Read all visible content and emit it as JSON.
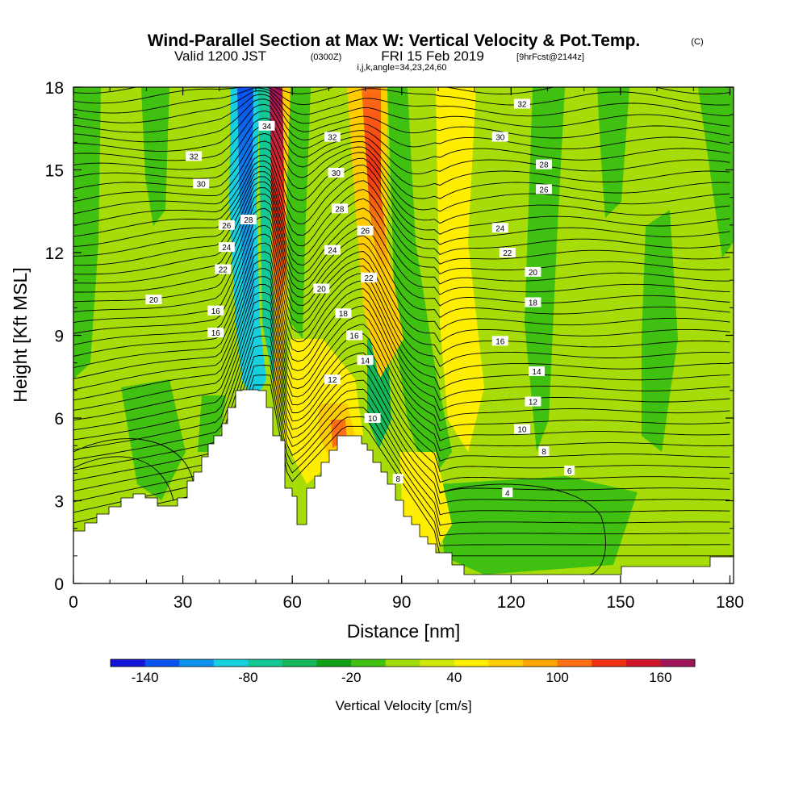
{
  "title": {
    "main": "Wind-Parallel Section at Max W: Vertical Velocity & Pot.Temp.",
    "main_units": "(C)",
    "valid_a": "Valid 1200 JST",
    "valid_utc": "(0300Z)",
    "valid_b": "FRI 15 Feb 2019",
    "forecast": "[9hrFcst@2144z]",
    "params": "i,j,k,angle=34,23,24,60"
  },
  "chart_data": {
    "type": "heatmap",
    "field": "Vertical Velocity",
    "overlay": "Potential Temperature contours (C)",
    "xlabel": "Distance [nm]",
    "ylabel": "Height [Kft MSL]",
    "xlim": [
      0,
      181
    ],
    "ylim": [
      0,
      18
    ],
    "x_ticks": [
      0,
      30,
      60,
      90,
      120,
      150,
      180
    ],
    "y_ticks": [
      0,
      3,
      6,
      9,
      12,
      15,
      18
    ],
    "colorbar": {
      "title": "Vertical Velocity [cm/s]",
      "levels": [
        -160,
        -140,
        -120,
        -100,
        -80,
        -60,
        -40,
        -20,
        0,
        20,
        40,
        60,
        80,
        100,
        120,
        140,
        160,
        180
      ],
      "labels": [
        -140,
        -80,
        -20,
        40,
        100,
        160
      ],
      "colors": [
        "#1414d8",
        "#0a52ee",
        "#0a92ee",
        "#16d0e0",
        "#14c896",
        "#14b858",
        "#10a018",
        "#40c010",
        "#a0dc08",
        "#d0e808",
        "#ffee00",
        "#ffcc00",
        "#ffa600",
        "#ff7014",
        "#f03214",
        "#d21428",
        "#a01458"
      ]
    },
    "theta_contour_labels": [
      {
        "x": 22,
        "y": 10.3,
        "v": "20"
      },
      {
        "x": 33,
        "y": 15.5,
        "v": "32"
      },
      {
        "x": 35,
        "y": 14.5,
        "v": "30"
      },
      {
        "x": 42,
        "y": 13.0,
        "v": "26"
      },
      {
        "x": 42,
        "y": 12.2,
        "v": "24"
      },
      {
        "x": 41,
        "y": 11.4,
        "v": "22"
      },
      {
        "x": 39,
        "y": 9.9,
        "v": "16"
      },
      {
        "x": 39,
        "y": 9.1,
        "v": "16"
      },
      {
        "x": 48,
        "y": 13.2,
        "v": "28"
      },
      {
        "x": 53,
        "y": 16.6,
        "v": "34"
      },
      {
        "x": 71,
        "y": 16.2,
        "v": "32"
      },
      {
        "x": 72,
        "y": 14.9,
        "v": "30"
      },
      {
        "x": 73,
        "y": 13.6,
        "v": "28"
      },
      {
        "x": 71,
        "y": 12.1,
        "v": "24"
      },
      {
        "x": 68,
        "y": 10.7,
        "v": "20"
      },
      {
        "x": 74,
        "y": 9.8,
        "v": "18"
      },
      {
        "x": 77,
        "y": 9.0,
        "v": "16"
      },
      {
        "x": 80,
        "y": 8.1,
        "v": "14"
      },
      {
        "x": 71,
        "y": 7.4,
        "v": "12"
      },
      {
        "x": 82,
        "y": 6.0,
        "v": "10"
      },
      {
        "x": 80,
        "y": 12.8,
        "v": "26"
      },
      {
        "x": 81,
        "y": 11.1,
        "v": "22"
      },
      {
        "x": 89,
        "y": 3.8,
        "v": "8"
      },
      {
        "x": 123,
        "y": 17.4,
        "v": "32"
      },
      {
        "x": 117,
        "y": 16.2,
        "v": "30"
      },
      {
        "x": 129,
        "y": 15.2,
        "v": "28"
      },
      {
        "x": 129,
        "y": 14.3,
        "v": "26"
      },
      {
        "x": 117,
        "y": 12.9,
        "v": "24"
      },
      {
        "x": 119,
        "y": 12.0,
        "v": "22"
      },
      {
        "x": 126,
        "y": 11.3,
        "v": "20"
      },
      {
        "x": 126,
        "y": 10.2,
        "v": "18"
      },
      {
        "x": 117,
        "y": 8.8,
        "v": "16"
      },
      {
        "x": 127,
        "y": 7.7,
        "v": "14"
      },
      {
        "x": 126,
        "y": 6.6,
        "v": "12"
      },
      {
        "x": 123,
        "y": 5.6,
        "v": "10"
      },
      {
        "x": 129,
        "y": 4.8,
        "v": "8"
      },
      {
        "x": 136,
        "y": 4.1,
        "v": "6"
      },
      {
        "x": 119,
        "y": 3.3,
        "v": "4"
      }
    ]
  }
}
